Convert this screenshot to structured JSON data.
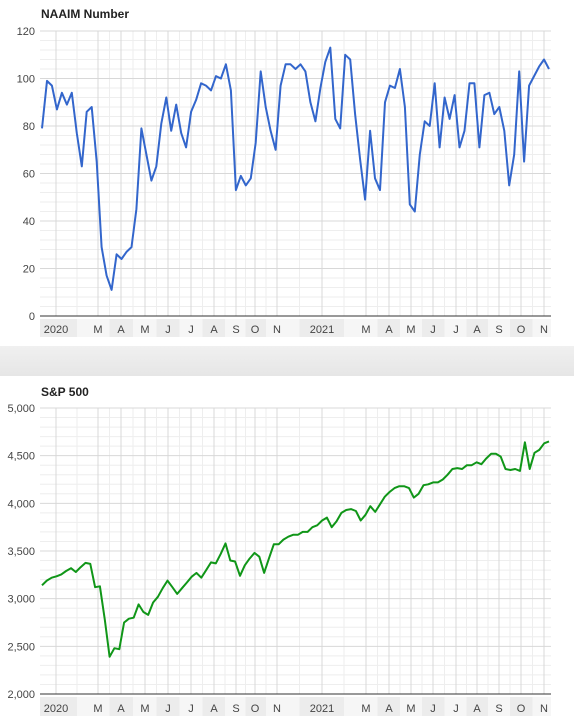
{
  "chart_data": [
    {
      "type": "line",
      "title": "NAAIM Number",
      "xlabel": "",
      "ylabel": "",
      "ylim": [
        0,
        120
      ],
      "yticks": [
        0,
        20,
        40,
        60,
        80,
        100,
        120
      ],
      "ytick_labels": [
        "0",
        "20",
        "40",
        "60",
        "80",
        "100",
        "120"
      ],
      "xtick_labels": [
        "2020",
        "M",
        "A",
        "M",
        "J",
        "J",
        "A",
        "S",
        "O",
        "N",
        "2021",
        "M",
        "A",
        "M",
        "J",
        "J",
        "A",
        "S",
        "O",
        "N"
      ],
      "grid": true,
      "color": "#3366cc",
      "series": [
        {
          "values": [
            79,
            99,
            97,
            87,
            94,
            89,
            94,
            77,
            63,
            86,
            88,
            65,
            29,
            17,
            11,
            26,
            24,
            27,
            29,
            45,
            79,
            68,
            57,
            63,
            81,
            92,
            78,
            89,
            77,
            71,
            86,
            91,
            98,
            97,
            95,
            101,
            100,
            106,
            95,
            53,
            59,
            55,
            58,
            73,
            103,
            88,
            78,
            70,
            97,
            106,
            106,
            104,
            106,
            103,
            90,
            82,
            96,
            107,
            113,
            83,
            79,
            110,
            108,
            85,
            66,
            49,
            78,
            58,
            53,
            90,
            97,
            96,
            104,
            88,
            47,
            44,
            68,
            82,
            80,
            98,
            71,
            92,
            83,
            93,
            71,
            78,
            98,
            98,
            71,
            93,
            94,
            85,
            88,
            78,
            55,
            68,
            103,
            65,
            97,
            101,
            105,
            108,
            104
          ]
        }
      ]
    },
    {
      "type": "line",
      "title": "S&P 500",
      "xlabel": "",
      "ylabel": "",
      "ylim": [
        2000,
        5000
      ],
      "yticks": [
        2000,
        2500,
        3000,
        3500,
        4000,
        4500,
        5000
      ],
      "ytick_labels": [
        "2,000",
        "2,500",
        "3,000",
        "3,500",
        "4,000",
        "4,500",
        "5,000"
      ],
      "xtick_labels": [
        "2020",
        "M",
        "A",
        "M",
        "J",
        "J",
        "A",
        "S",
        "O",
        "N",
        "2021",
        "M",
        "A",
        "M",
        "J",
        "J",
        "A",
        "S",
        "O",
        "N"
      ],
      "grid": true,
      "color": "#109618",
      "series": [
        {
          "values": [
            3140,
            3190,
            3220,
            3235,
            3255,
            3290,
            3320,
            3280,
            3330,
            3375,
            3365,
            3120,
            3130,
            2780,
            2390,
            2480,
            2470,
            2750,
            2790,
            2800,
            2940,
            2860,
            2830,
            2960,
            3020,
            3110,
            3190,
            3120,
            3050,
            3110,
            3170,
            3230,
            3270,
            3220,
            3300,
            3380,
            3370,
            3470,
            3580,
            3400,
            3390,
            3240,
            3350,
            3420,
            3480,
            3440,
            3270,
            3420,
            3570,
            3570,
            3620,
            3650,
            3670,
            3670,
            3700,
            3700,
            3750,
            3770,
            3820,
            3850,
            3750,
            3810,
            3900,
            3930,
            3940,
            3920,
            3820,
            3880,
            3970,
            3910,
            3990,
            4070,
            4120,
            4160,
            4180,
            4180,
            4160,
            4060,
            4100,
            4190,
            4200,
            4220,
            4220,
            4250,
            4300,
            4360,
            4370,
            4360,
            4400,
            4400,
            4430,
            4410,
            4470,
            4520,
            4520,
            4490,
            4360,
            4350,
            4360,
            4340,
            4640,
            4360,
            4530,
            4560,
            4630,
            4650
          ]
        }
      ]
    }
  ]
}
